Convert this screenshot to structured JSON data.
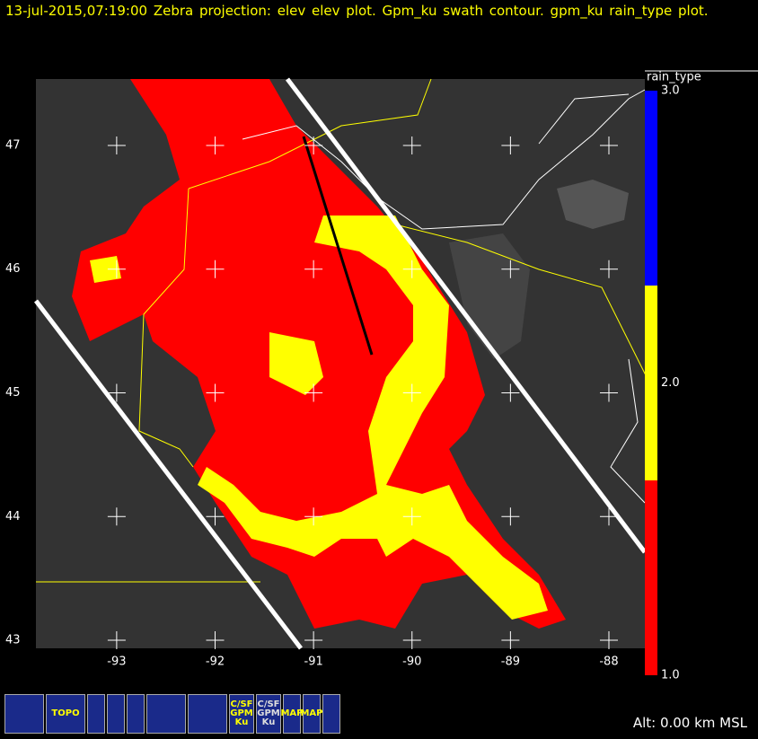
{
  "header": {
    "title": "13-jul-2015,07:19:00  Zebra projection: elev elev  plot.  Gpm_ku swath contour.  gpm_ku rain_type plot."
  },
  "map": {
    "lon_range": [
      -93.82,
      -87.635
    ],
    "lat_range": [
      42.935,
      47.537
    ],
    "lon_ticks": [
      -93,
      -92,
      -91,
      -90,
      -89,
      -88
    ],
    "lat_ticks": [
      43,
      44,
      45,
      46,
      47
    ]
  },
  "colorbar": {
    "title": "rain_type",
    "range": [
      1,
      3
    ],
    "ticks": [
      {
        "value": 3,
        "label": "3.0"
      },
      {
        "value": 2,
        "label": "2.0"
      },
      {
        "value": 1,
        "label": "1.0"
      }
    ],
    "colors": [
      "#ff0000",
      "#ffff00",
      "#0000ff"
    ]
  },
  "toolbar": {
    "topo": "TOPO",
    "csf1": "C/SF GPM Ku",
    "csf2": "C/SF GPM Ku",
    "map1": "MAP",
    "map2": "MAP"
  },
  "status": {
    "altitude": "Alt: 0.00 km MSL"
  }
}
